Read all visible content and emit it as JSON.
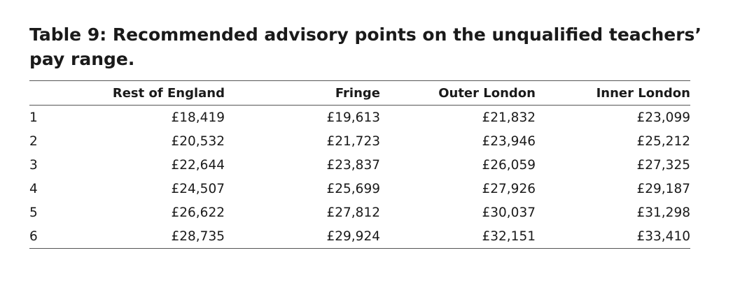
{
  "title_line1": "Table 9:  Recommended advisory points on the unqualified teachers’",
  "title_line2": "pay range.",
  "columns": [
    "",
    "Rest of England",
    "Fringe",
    "Outer London",
    "Inner London"
  ],
  "rows": [
    [
      "1",
      "£18,419",
      "£19,613",
      "£21,832",
      "£23,099"
    ],
    [
      "2",
      "£20,532",
      "£21,723",
      "£23,946",
      "£25,212"
    ],
    [
      "3",
      "£22,644",
      "£23,837",
      "£26,059",
      "£27,325"
    ],
    [
      "4",
      "£24,507",
      "£25,699",
      "£27,926",
      "£29,187"
    ],
    [
      "5",
      "£26,622",
      "£27,812",
      "£30,037",
      "£31,298"
    ],
    [
      "6",
      "£28,735",
      "£29,924",
      "£32,151",
      "£33,410"
    ]
  ]
}
